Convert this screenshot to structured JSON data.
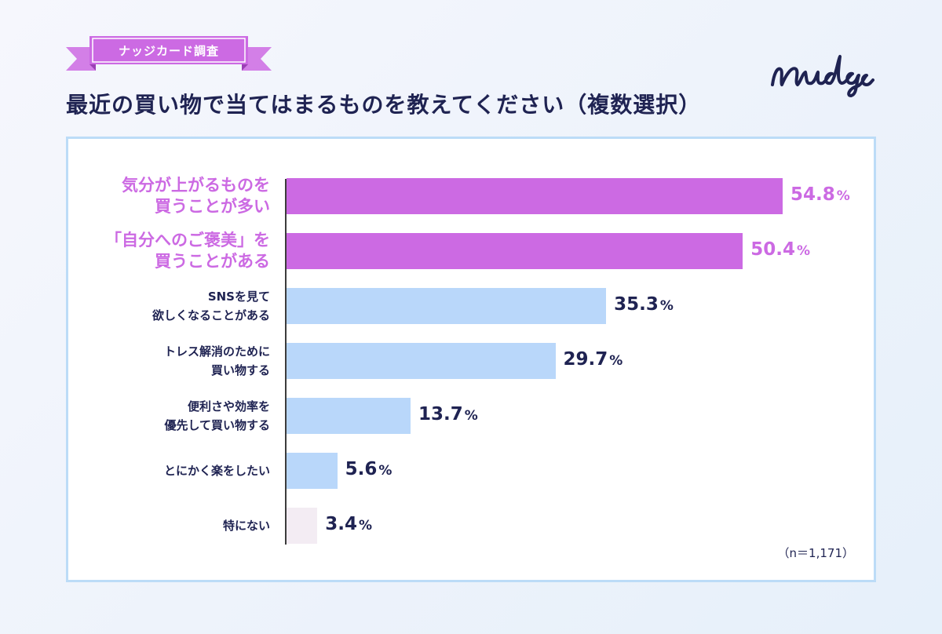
{
  "header": {
    "tag_label": "ナッジカード調査",
    "title": "最近の買い物で当てはまるものを教えてください（複数選択）",
    "logo_text": "nudge"
  },
  "colors": {
    "highlight": "#cc6ae3",
    "normal_bar": "#b9d7fa",
    "last_bar": "#f3ecf3",
    "dark_text": "#1f2352",
    "panel_border": "#bcdcf7",
    "ribbon": "#cc6ae3"
  },
  "chart_data": {
    "type": "bar",
    "orientation": "horizontal",
    "title": "最近の買い物で当てはまるものを教えてください（複数選択）",
    "categories": [
      "気分が上がるものを\n買うことが多い",
      "「自分へのご褒美」を\n買うことがある",
      "SNSを見て\n欲しくなることがある",
      "トレス解消のために\n買い物する",
      "便利さや効率を\n優先して買い物する",
      "とにかく楽をしたい",
      "特にない"
    ],
    "values": [
      54.8,
      50.4,
      35.3,
      29.7,
      13.7,
      5.6,
      3.4
    ],
    "value_labels": [
      "54.8",
      "50.4",
      "35.3",
      "29.7",
      "13.7",
      "5.6",
      "3.4"
    ],
    "unit": "%",
    "highlighted": [
      true,
      true,
      false,
      false,
      false,
      false,
      false
    ],
    "xlim": [
      0,
      60
    ],
    "grid": false,
    "legend": "none"
  },
  "footnote": "（n＝1,171）"
}
